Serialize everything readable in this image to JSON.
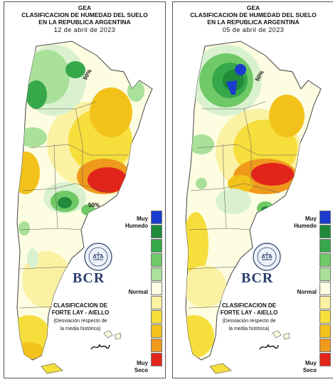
{
  "panels": [
    {
      "header": "GEA",
      "title_line1": "CLASIFICACION DE HUMEDAD DEL SUELO",
      "title_line2": "EN LA REPUBLICA ARGENTINA",
      "date": "12 de abril de 2023",
      "contour_labels": [
        "50%",
        "50%"
      ]
    },
    {
      "header": "GEA",
      "title_line1": "CLASIFICACION DE HUMEDAD DEL SUELO",
      "title_line2": "EN LA REPUBLICA ARGENTINA",
      "date": "05 de abril de 2023",
      "contour_labels": [
        "50%"
      ]
    }
  ],
  "legend": {
    "muy_humedo": [
      "Muy",
      "Humedo"
    ],
    "normal": "Normal",
    "muy_seco": [
      "Muy",
      "Seco"
    ],
    "colors": [
      "#1a3ccf",
      "#1f8a3a",
      "#37a84a",
      "#6fc966",
      "#a9e09a",
      "#d9f1cf",
      "#fdfde2",
      "#fbf1a2",
      "#f6de3c",
      "#f2c21b",
      "#ef9a1d",
      "#e2251b"
    ]
  },
  "classification": {
    "title_line1": "CLASIFICACION DE",
    "title_line2": "FORTE LAY - AIELLO",
    "note_line1": "(Desviación respecto de",
    "note_line2": "la media histórica)"
  },
  "logo": {
    "text": "BCR",
    "ring_text": "BOLSA DE COMERCIO DE ROSARIO"
  }
}
